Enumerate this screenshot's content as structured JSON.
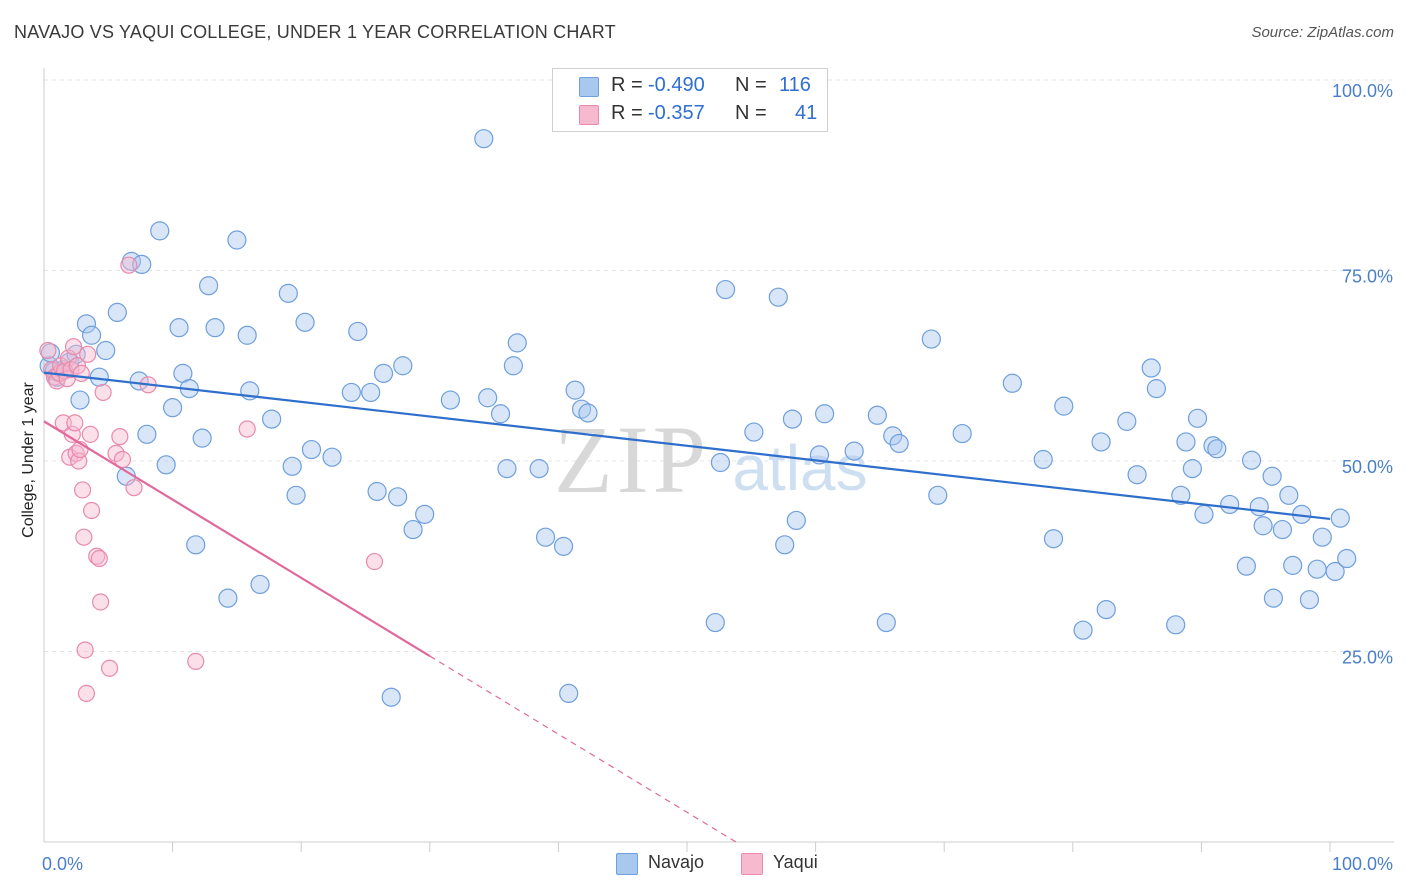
{
  "title": "NAVAJO VS YAQUI COLLEGE, UNDER 1 YEAR CORRELATION CHART",
  "source": "Source: ZipAtlas.com",
  "watermark": {
    "zip": "ZIP",
    "atlas": "atlas"
  },
  "colors": {
    "navajo_fill": "#a9c8f0",
    "navajo_stroke": "#6f9fdc",
    "navajo_line": "#2f6fcc",
    "yaqui_fill": "#f6b9ce",
    "yaqui_stroke": "#e88aab",
    "yaqui_line": "#e0689a",
    "accent_text": "#2e6fd0"
  },
  "legend": {
    "rows": [
      {
        "r_label": "R =",
        "r_value": "-0.490",
        "n_label": "N =",
        "n_value": "116"
      },
      {
        "r_label": "R =",
        "r_value": "-0.357",
        "n_label": "N =",
        "n_value": "41"
      }
    ]
  },
  "bottom_legend": {
    "navajo": "Navajo",
    "yaqui": "Yaqui"
  },
  "chart_data": {
    "type": "scatter",
    "title": "NAVAJO VS YAQUI COLLEGE, UNDER 1 YEAR CORRELATION CHART",
    "xlabel": "",
    "ylabel": "College, Under 1 year",
    "xlim": [
      0,
      100
    ],
    "ylim": [
      0,
      100
    ],
    "x_tick_labels": [
      {
        "value": 0,
        "label": "0.0%"
      },
      {
        "value": 100,
        "label": "100.0%"
      }
    ],
    "y_tick_labels": [
      {
        "value": 100,
        "label": "100.0%"
      },
      {
        "value": 75,
        "label": "75.0%"
      },
      {
        "value": 50,
        "label": "50.0%"
      },
      {
        "value": 25,
        "label": "25.0%"
      }
    ],
    "grid": true,
    "series": [
      {
        "name": "Navajo",
        "R": -0.49,
        "N": 116,
        "trend": {
          "x": [
            0,
            100
          ],
          "y": [
            61.6,
            42.4
          ]
        },
        "points": [
          [
            0.4,
            62.5
          ],
          [
            0.5,
            64.2
          ],
          [
            0.8,
            61.8
          ],
          [
            1,
            61
          ],
          [
            1.5,
            62
          ],
          [
            2,
            63
          ],
          [
            2.5,
            64
          ],
          [
            2.8,
            58
          ],
          [
            3.3,
            68
          ],
          [
            3.7,
            66.5
          ],
          [
            4.3,
            61
          ],
          [
            4.8,
            64.5
          ],
          [
            5.7,
            69.5
          ],
          [
            6.4,
            48
          ],
          [
            6.8,
            76.2
          ],
          [
            7.4,
            60.5
          ],
          [
            7.6,
            75.8
          ],
          [
            8,
            53.5
          ],
          [
            9,
            80.2
          ],
          [
            9.5,
            49.5
          ],
          [
            10,
            57
          ],
          [
            10.5,
            67.5
          ],
          [
            10.8,
            61.5
          ],
          [
            11.3,
            59.5
          ],
          [
            11.8,
            39
          ],
          [
            12.3,
            53
          ],
          [
            12.8,
            73
          ],
          [
            13.3,
            67.5
          ],
          [
            14.3,
            32
          ],
          [
            15,
            79
          ],
          [
            15.8,
            66.5
          ],
          [
            16,
            59.2
          ],
          [
            16.8,
            33.8
          ],
          [
            17.7,
            55.5
          ],
          [
            19,
            72
          ],
          [
            19.3,
            49.3
          ],
          [
            19.6,
            45.5
          ],
          [
            20.3,
            68.2
          ],
          [
            20.8,
            51.5
          ],
          [
            22.4,
            50.5
          ],
          [
            23.9,
            59
          ],
          [
            24.4,
            67
          ],
          [
            25.4,
            59
          ],
          [
            25.9,
            46
          ],
          [
            26.4,
            61.5
          ],
          [
            27,
            19
          ],
          [
            27.5,
            45.3
          ],
          [
            27.9,
            62.5
          ],
          [
            28.7,
            41
          ],
          [
            29.6,
            43
          ],
          [
            31.6,
            58
          ],
          [
            34.2,
            92.3
          ],
          [
            34.5,
            58.3
          ],
          [
            35.5,
            56.2
          ],
          [
            36,
            49
          ],
          [
            36.5,
            62.5
          ],
          [
            36.8,
            65.5
          ],
          [
            38.5,
            49
          ],
          [
            39,
            40
          ],
          [
            40.4,
            38.8
          ],
          [
            40.8,
            19.5
          ],
          [
            41.3,
            59.3
          ],
          [
            41.8,
            56.8
          ],
          [
            42.3,
            56.3
          ],
          [
            52.2,
            28.8
          ],
          [
            52.6,
            49.8
          ],
          [
            53,
            72.5
          ],
          [
            55.2,
            53.8
          ],
          [
            57.1,
            71.5
          ],
          [
            57.6,
            39
          ],
          [
            58.2,
            55.5
          ],
          [
            58.5,
            42.2
          ],
          [
            60.3,
            50.8
          ],
          [
            60.7,
            56.2
          ],
          [
            63,
            51.3
          ],
          [
            64.8,
            56
          ],
          [
            65.5,
            28.8
          ],
          [
            66,
            53.3
          ],
          [
            66.5,
            52.3
          ],
          [
            69,
            66
          ],
          [
            69.5,
            45.5
          ],
          [
            71.4,
            53.6
          ],
          [
            75.3,
            60.2
          ],
          [
            77.7,
            50.2
          ],
          [
            78.5,
            39.8
          ],
          [
            79.3,
            57.2
          ],
          [
            80.8,
            27.8
          ],
          [
            82.2,
            52.5
          ],
          [
            82.6,
            30.5
          ],
          [
            84.2,
            55.2
          ],
          [
            85,
            48.2
          ],
          [
            86.1,
            62.2
          ],
          [
            86.5,
            59.5
          ],
          [
            88,
            28.5
          ],
          [
            88.4,
            45.5
          ],
          [
            88.8,
            52.5
          ],
          [
            89.3,
            49
          ],
          [
            89.7,
            55.6
          ],
          [
            90.2,
            43
          ],
          [
            90.9,
            52
          ],
          [
            91.2,
            51.6
          ],
          [
            92.2,
            44.3
          ],
          [
            93.5,
            36.2
          ],
          [
            93.9,
            50.1
          ],
          [
            94.5,
            44
          ],
          [
            94.8,
            41.5
          ],
          [
            95.5,
            48
          ],
          [
            95.6,
            32
          ],
          [
            96.3,
            41
          ],
          [
            96.8,
            45.5
          ],
          [
            97.1,
            36.3
          ],
          [
            97.8,
            43
          ],
          [
            98.4,
            31.8
          ],
          [
            99,
            35.8
          ],
          [
            99.4,
            40
          ],
          [
            100.4,
            35.5
          ],
          [
            100.8,
            42.5
          ],
          [
            101.3,
            37.2
          ]
        ]
      },
      {
        "name": "Yaqui",
        "R": -0.357,
        "N": 41,
        "trend": {
          "x": [
            0,
            30
          ],
          "y": [
            55.2,
            24.4
          ]
        },
        "trend_extension": {
          "x": [
            30,
            54
          ],
          "y": [
            24.4,
            -0.2
          ]
        },
        "points": [
          [
            0.3,
            64.5
          ],
          [
            0.6,
            62
          ],
          [
            0.8,
            61
          ],
          [
            1,
            60.5
          ],
          [
            1.2,
            61.5
          ],
          [
            1.3,
            62.5
          ],
          [
            1.5,
            55
          ],
          [
            1.6,
            61.8
          ],
          [
            1.8,
            60.8
          ],
          [
            1.9,
            63.5
          ],
          [
            2,
            50.5
          ],
          [
            2.1,
            62
          ],
          [
            2.2,
            53.5
          ],
          [
            2.3,
            65
          ],
          [
            2.4,
            55
          ],
          [
            2.5,
            51
          ],
          [
            2.6,
            62.5
          ],
          [
            2.7,
            50
          ],
          [
            2.8,
            51.5
          ],
          [
            2.9,
            61.5
          ],
          [
            3,
            46.2
          ],
          [
            3.1,
            40
          ],
          [
            3.2,
            25.2
          ],
          [
            3.3,
            19.5
          ],
          [
            3.4,
            64
          ],
          [
            3.6,
            53.5
          ],
          [
            3.7,
            43.5
          ],
          [
            4.1,
            37.5
          ],
          [
            4.3,
            37.2
          ],
          [
            4.4,
            31.5
          ],
          [
            4.6,
            59
          ],
          [
            5.1,
            22.8
          ],
          [
            5.6,
            51
          ],
          [
            5.9,
            53.2
          ],
          [
            6.1,
            50.2
          ],
          [
            7,
            46.5
          ],
          [
            8.1,
            60
          ],
          [
            11.8,
            23.7
          ],
          [
            15.8,
            54.2
          ],
          [
            25.7,
            36.8
          ],
          [
            6.6,
            75.7
          ]
        ]
      }
    ]
  }
}
